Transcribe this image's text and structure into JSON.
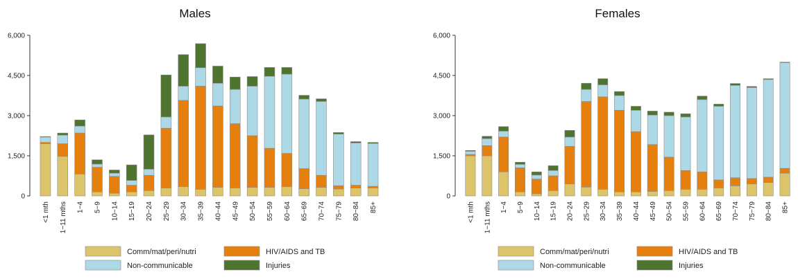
{
  "chart_data": [
    {
      "type": "bar",
      "stacked": true,
      "title": "Males",
      "categories": [
        "<1 mth",
        "1−11 mths",
        "1−4",
        "5−9",
        "10−14",
        "15−19",
        "20−24",
        "25−29",
        "30−34",
        "35−39",
        "40−44",
        "45−49",
        "50−54",
        "55−59",
        "60−64",
        "65−69",
        "70−74",
        "75−79",
        "80−84",
        "85+"
      ],
      "ylim": [
        0,
        6000
      ],
      "yticks": [
        0,
        1500,
        3000,
        4500,
        6000
      ],
      "ytick_labels": [
        "0",
        "1,500",
        "3,000",
        "4,500",
        "6,000"
      ],
      "series": [
        {
          "name": "Comm/mat/peri/nutri",
          "color": "#dcc46a",
          "values": [
            1950,
            1480,
            820,
            150,
            100,
            150,
            200,
            300,
            350,
            250,
            320,
            300,
            320,
            320,
            350,
            270,
            320,
            260,
            300,
            300
          ]
        },
        {
          "name": "HIV/AIDS and TB",
          "color": "#e5800f",
          "values": [
            50,
            470,
            1530,
            920,
            630,
            250,
            570,
            2230,
            3220,
            3850,
            3040,
            2400,
            1930,
            1460,
            1240,
            750,
            450,
            120,
            100,
            60
          ]
        },
        {
          "name": "Non-communicable",
          "color": "#add8e6",
          "values": [
            200,
            320,
            260,
            120,
            120,
            180,
            230,
            420,
            530,
            690,
            850,
            1280,
            1850,
            2690,
            2960,
            2600,
            2760,
            1930,
            1580,
            1600
          ]
        },
        {
          "name": "Injuries",
          "color": "#4e7430",
          "values": [
            20,
            80,
            230,
            160,
            120,
            580,
            1280,
            1570,
            1180,
            900,
            640,
            460,
            360,
            330,
            250,
            140,
            100,
            60,
            50,
            40
          ]
        }
      ],
      "legend_position": "bottom"
    },
    {
      "type": "bar",
      "stacked": true,
      "title": "Females",
      "categories": [
        "<1 mth",
        "1−11 mths",
        "1−4",
        "5−9",
        "10−14",
        "15−19",
        "20−24",
        "25−29",
        "30−34",
        "35−39",
        "40−44",
        "45−49",
        "50−54",
        "55−59",
        "60−64",
        "65−69",
        "70−74",
        "75−79",
        "80−84",
        "85+"
      ],
      "ylim": [
        0,
        6000
      ],
      "yticks": [
        0,
        1500,
        3000,
        4500,
        6000
      ],
      "ytick_labels": [
        "0",
        "1,500",
        "3,000",
        "4,500",
        "6,000"
      ],
      "series": [
        {
          "name": "Comm/mat/peri/nutri",
          "color": "#dcc46a",
          "values": [
            1500,
            1500,
            900,
            150,
            80,
            200,
            450,
            330,
            250,
            150,
            150,
            170,
            200,
            250,
            250,
            300,
            380,
            450,
            500,
            850
          ]
        },
        {
          "name": "HIV/AIDS and TB",
          "color": "#e5800f",
          "values": [
            50,
            380,
            1300,
            900,
            550,
            550,
            1400,
            3200,
            3450,
            3050,
            2250,
            1750,
            1250,
            700,
            650,
            300,
            300,
            200,
            200,
            180
          ]
        },
        {
          "name": "Non-communicable",
          "color": "#add8e6",
          "values": [
            120,
            260,
            220,
            130,
            150,
            200,
            350,
            450,
            450,
            550,
            800,
            1100,
            1550,
            2000,
            2700,
            2750,
            3450,
            3400,
            3650,
            3950
          ]
        },
        {
          "name": "Injuries",
          "color": "#4e7430",
          "values": [
            30,
            90,
            170,
            80,
            120,
            180,
            250,
            230,
            230,
            150,
            150,
            150,
            130,
            120,
            130,
            80,
            70,
            40,
            30,
            20
          ]
        }
      ],
      "legend_position": "bottom"
    }
  ]
}
